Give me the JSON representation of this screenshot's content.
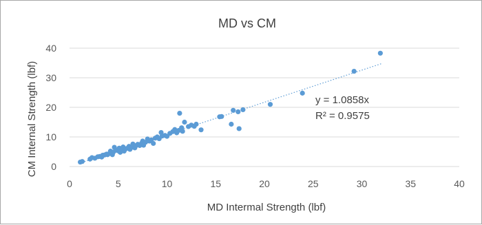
{
  "chart_data": {
    "type": "scatter",
    "title": "MD vs CM",
    "xlabel": "MD Intermal Strength (lbf)",
    "ylabel": "CM Internal Strength (lbf)",
    "xlim": [
      0,
      40
    ],
    "ylim": [
      0,
      40
    ],
    "xticks": [
      "0",
      "5",
      "10",
      "15",
      "20",
      "25",
      "30",
      "35",
      "40"
    ],
    "yticks": [
      "0",
      "10",
      "20",
      "30",
      "40"
    ],
    "grid": "horizontal",
    "marker_color": "#5b9bd5",
    "trendline": {
      "type": "linear-through-origin",
      "slope": 1.0858,
      "equation": "y = 1.0858x",
      "r_squared": "R² = 0.9575",
      "style": "dotted",
      "x_range": [
        1,
        32
      ]
    },
    "points": [
      [
        1.1,
        1.5
      ],
      [
        1.3,
        1.7
      ],
      [
        2.1,
        2.5
      ],
      [
        2.3,
        3.0
      ],
      [
        2.6,
        2.8
      ],
      [
        2.9,
        3.3
      ],
      [
        3.1,
        3.4
      ],
      [
        3.3,
        3.2
      ],
      [
        3.4,
        3.8
      ],
      [
        3.6,
        3.9
      ],
      [
        3.8,
        4.2
      ],
      [
        3.9,
        4.0
      ],
      [
        4.1,
        4.4
      ],
      [
        4.2,
        5.2
      ],
      [
        4.4,
        4.0
      ],
      [
        4.5,
        4.9
      ],
      [
        4.6,
        6.5
      ],
      [
        4.8,
        5.5
      ],
      [
        5.0,
        5.3
      ],
      [
        5.1,
        6.2
      ],
      [
        5.2,
        4.8
      ],
      [
        5.4,
        5.8
      ],
      [
        5.5,
        6.6
      ],
      [
        5.6,
        5.2
      ],
      [
        5.8,
        6.0
      ],
      [
        6.0,
        6.3
      ],
      [
        6.1,
        6.8
      ],
      [
        6.2,
        5.8
      ],
      [
        6.4,
        6.5
      ],
      [
        6.5,
        7.6
      ],
      [
        6.7,
        6.3
      ],
      [
        6.8,
        7.0
      ],
      [
        7.0,
        7.5
      ],
      [
        7.2,
        7.1
      ],
      [
        7.4,
        7.9
      ],
      [
        7.5,
        8.6
      ],
      [
        7.6,
        7.2
      ],
      [
        7.8,
        8.2
      ],
      [
        8.0,
        9.3
      ],
      [
        8.2,
        8.6
      ],
      [
        8.4,
        9.0
      ],
      [
        8.6,
        7.8
      ],
      [
        8.8,
        9.6
      ],
      [
        9.0,
        10.0
      ],
      [
        9.2,
        9.4
      ],
      [
        9.4,
        11.5
      ],
      [
        9.5,
        10.3
      ],
      [
        9.8,
        10.5
      ],
      [
        10.0,
        10.2
      ],
      [
        10.3,
        11.2
      ],
      [
        10.6,
        11.8
      ],
      [
        10.8,
        12.5
      ],
      [
        11.0,
        11.4
      ],
      [
        11.2,
        12.2
      ],
      [
        11.3,
        18.0
      ],
      [
        11.5,
        13.1
      ],
      [
        11.6,
        11.9
      ],
      [
        11.8,
        15.0
      ],
      [
        12.2,
        13.5
      ],
      [
        12.5,
        14.0
      ],
      [
        12.8,
        13.6
      ],
      [
        13.0,
        14.3
      ],
      [
        13.5,
        12.4
      ],
      [
        15.4,
        16.8
      ],
      [
        15.6,
        16.9
      ],
      [
        16.6,
        14.3
      ],
      [
        16.8,
        19.0
      ],
      [
        17.3,
        18.5
      ],
      [
        17.4,
        12.8
      ],
      [
        17.8,
        19.2
      ],
      [
        20.6,
        21.0
      ],
      [
        23.9,
        24.8
      ],
      [
        29.2,
        32.2
      ],
      [
        31.9,
        38.3
      ]
    ]
  }
}
